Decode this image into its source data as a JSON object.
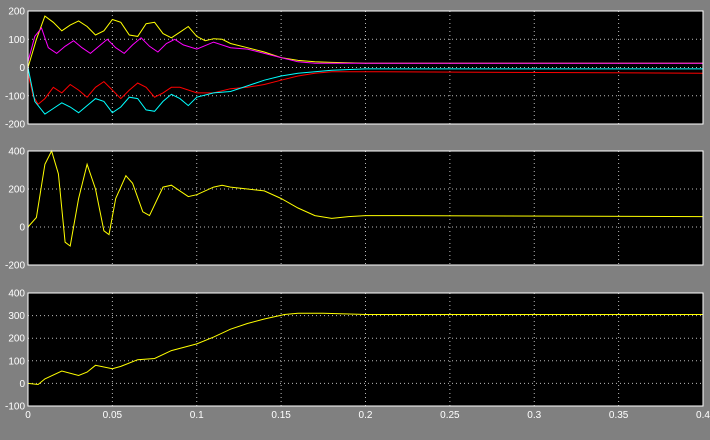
{
  "chart_data": [
    {
      "type": "line",
      "xlim": [
        0,
        0.4
      ],
      "ylim": [
        -200,
        200
      ],
      "yticks": [
        -200,
        -100,
        0,
        100,
        200
      ],
      "xticks": [
        0,
        0.05,
        0.1,
        0.15,
        0.2,
        0.25,
        0.3,
        0.35,
        0.4
      ],
      "show_xtick_labels": false,
      "grid": true,
      "background": "#000000",
      "series": [
        {
          "color": "#ffff00",
          "x": [
            0,
            0.005,
            0.01,
            0.015,
            0.02,
            0.025,
            0.03,
            0.035,
            0.04,
            0.045,
            0.05,
            0.055,
            0.06,
            0.065,
            0.07,
            0.075,
            0.08,
            0.085,
            0.09,
            0.095,
            0.1,
            0.105,
            0.11,
            0.115,
            0.12,
            0.13,
            0.14,
            0.15,
            0.16,
            0.17,
            0.18,
            0.2,
            0.4
          ],
          "y": [
            0,
            100,
            182,
            160,
            130,
            150,
            165,
            145,
            115,
            130,
            170,
            160,
            115,
            110,
            155,
            160,
            120,
            105,
            125,
            145,
            110,
            95,
            102,
            100,
            85,
            70,
            55,
            35,
            25,
            20,
            18,
            15,
            15
          ]
        },
        {
          "color": "#ff00ff",
          "x": [
            0,
            0.004,
            0.008,
            0.012,
            0.017,
            0.022,
            0.027,
            0.032,
            0.037,
            0.042,
            0.047,
            0.052,
            0.057,
            0.062,
            0.067,
            0.072,
            0.077,
            0.082,
            0.087,
            0.092,
            0.1,
            0.11,
            0.12,
            0.13,
            0.14,
            0.15,
            0.16,
            0.17,
            0.18,
            0.2,
            0.4
          ],
          "y": [
            20,
            110,
            140,
            70,
            50,
            75,
            95,
            70,
            50,
            75,
            100,
            70,
            50,
            80,
            105,
            75,
            55,
            85,
            100,
            80,
            65,
            90,
            70,
            65,
            50,
            35,
            20,
            15,
            15,
            15,
            15
          ]
        },
        {
          "color": "#ff0000",
          "x": [
            0,
            0.003,
            0.006,
            0.01,
            0.015,
            0.02,
            0.025,
            0.03,
            0.035,
            0.04,
            0.045,
            0.05,
            0.055,
            0.06,
            0.065,
            0.07,
            0.075,
            0.08,
            0.085,
            0.09,
            0.1,
            0.11,
            0.12,
            0.13,
            0.14,
            0.15,
            0.16,
            0.17,
            0.18,
            0.2,
            0.4
          ],
          "y": [
            -20,
            -100,
            -130,
            -110,
            -70,
            -90,
            -60,
            -80,
            -105,
            -70,
            -50,
            -80,
            -110,
            -80,
            -55,
            -70,
            -105,
            -90,
            -70,
            -70,
            -90,
            -90,
            -75,
            -70,
            -60,
            -45,
            -30,
            -20,
            -15,
            -15,
            -20
          ]
        },
        {
          "color": "#00ffff",
          "x": [
            0,
            0.004,
            0.01,
            0.015,
            0.02,
            0.025,
            0.03,
            0.035,
            0.04,
            0.045,
            0.05,
            0.055,
            0.06,
            0.065,
            0.07,
            0.075,
            0.08,
            0.085,
            0.09,
            0.095,
            0.1,
            0.11,
            0.12,
            0.13,
            0.14,
            0.15,
            0.16,
            0.17,
            0.18,
            0.2,
            0.4
          ],
          "y": [
            0,
            -120,
            -165,
            -145,
            -125,
            -140,
            -160,
            -135,
            -110,
            -120,
            -160,
            -140,
            -105,
            -110,
            -150,
            -155,
            -120,
            -95,
            -110,
            -135,
            -105,
            -90,
            -85,
            -65,
            -45,
            -30,
            -20,
            -15,
            -10,
            -5,
            -5
          ]
        }
      ]
    },
    {
      "type": "line",
      "xlim": [
        0,
        0.4
      ],
      "ylim": [
        -200,
        400
      ],
      "yticks": [
        -200,
        0,
        200,
        400
      ],
      "xticks": [
        0,
        0.05,
        0.1,
        0.15,
        0.2,
        0.25,
        0.3,
        0.35,
        0.4
      ],
      "show_xtick_labels": false,
      "grid": true,
      "background": "#000000",
      "series": [
        {
          "color": "#ffff00",
          "x": [
            0,
            0.005,
            0.01,
            0.014,
            0.018,
            0.022,
            0.025,
            0.03,
            0.035,
            0.04,
            0.045,
            0.048,
            0.052,
            0.058,
            0.062,
            0.068,
            0.072,
            0.08,
            0.085,
            0.09,
            0.095,
            0.1,
            0.11,
            0.115,
            0.12,
            0.13,
            0.14,
            0.15,
            0.16,
            0.17,
            0.18,
            0.19,
            0.2,
            0.22,
            0.4
          ],
          "y": [
            0,
            50,
            330,
            400,
            280,
            -80,
            -100,
            150,
            330,
            200,
            -20,
            -40,
            150,
            270,
            230,
            80,
            60,
            210,
            220,
            190,
            160,
            170,
            210,
            220,
            210,
            200,
            190,
            150,
            100,
            60,
            45,
            55,
            60,
            60,
            55
          ]
        }
      ]
    },
    {
      "type": "line",
      "xlim": [
        0,
        0.4
      ],
      "ylim": [
        -100,
        400
      ],
      "yticks": [
        -100,
        0,
        100,
        200,
        300,
        400
      ],
      "xticks": [
        0,
        0.05,
        0.1,
        0.15,
        0.2,
        0.25,
        0.3,
        0.35,
        0.4
      ],
      "xtick_labels": [
        "0",
        "0.05",
        "0.1",
        "0.15",
        "0.2",
        "0.25",
        "0.3",
        "0.35",
        "0.4"
      ],
      "show_xtick_labels": true,
      "grid": true,
      "background": "#000000",
      "series": [
        {
          "color": "#ffff00",
          "x": [
            0,
            0.006,
            0.01,
            0.02,
            0.03,
            0.035,
            0.04,
            0.05,
            0.055,
            0.065,
            0.075,
            0.085,
            0.1,
            0.11,
            0.12,
            0.13,
            0.14,
            0.152,
            0.16,
            0.175,
            0.2,
            0.4
          ],
          "y": [
            0,
            -5,
            20,
            55,
            35,
            50,
            80,
            65,
            75,
            105,
            110,
            145,
            175,
            205,
            240,
            265,
            285,
            305,
            310,
            310,
            305,
            305
          ]
        }
      ]
    }
  ]
}
